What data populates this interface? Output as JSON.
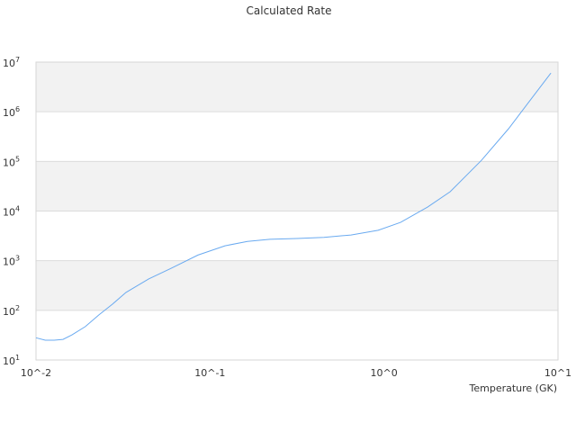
{
  "chart_data": {
    "type": "line",
    "title": "Calculated Rate",
    "xlabel": "Temperature (GK)",
    "ylabel": "",
    "x_scale": "log",
    "y_scale": "log",
    "xlim": [
      0.01,
      10
    ],
    "ylim": [
      10,
      10000000
    ],
    "x_tick_labels": [
      "10^-2",
      "10^-1",
      "10^0",
      "10^1"
    ],
    "y_tick_labels": [
      {
        "base": "10",
        "exp": "1"
      },
      {
        "base": "10",
        "exp": "2"
      },
      {
        "base": "10",
        "exp": "3"
      },
      {
        "base": "10",
        "exp": "4"
      },
      {
        "base": "10",
        "exp": "5"
      },
      {
        "base": "10",
        "exp": "6"
      },
      {
        "base": "10",
        "exp": "7"
      }
    ],
    "grid": true,
    "alternating_bands_color": "#f2f2f2",
    "series": [
      {
        "color": "#6aaaf0",
        "x": [
          0.01,
          0.0113,
          0.0127,
          0.0143,
          0.0161,
          0.0192,
          0.023,
          0.0275,
          0.0329,
          0.0444,
          0.0597,
          0.0853,
          0.122,
          0.164,
          0.221,
          0.316,
          0.452,
          0.646,
          0.925,
          1.245,
          1.78,
          2.4,
          3.63,
          5.2,
          7.0,
          9.1
        ],
        "y": [
          28,
          25,
          25,
          26,
          32,
          47,
          81,
          133,
          230,
          430,
          700,
          1300,
          2000,
          2450,
          2700,
          2800,
          2950,
          3300,
          4100,
          5900,
          12000,
          24500,
          105000,
          455000,
          1800000,
          6000000
        ]
      }
    ]
  }
}
